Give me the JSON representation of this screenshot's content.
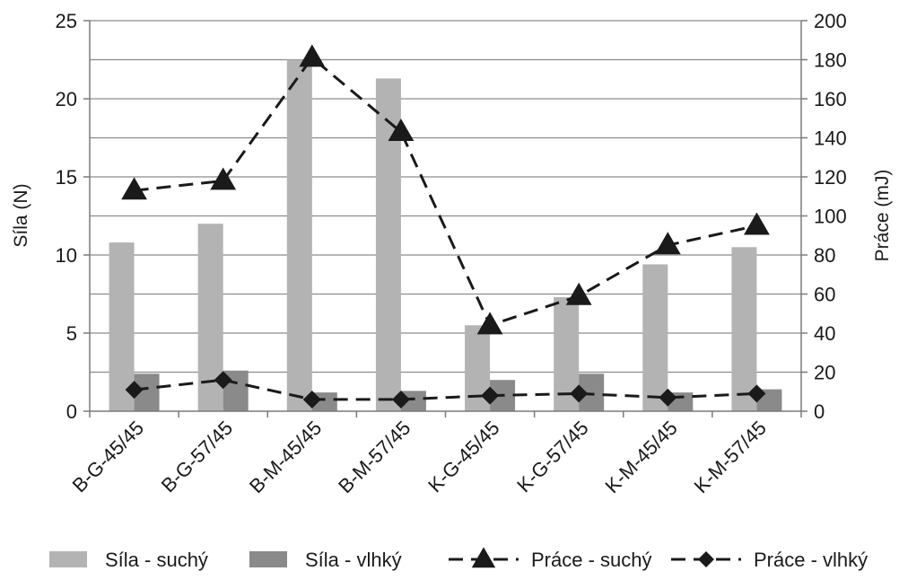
{
  "chart_data": {
    "type": "bar",
    "title": "",
    "categories": [
      "B-G-45/45",
      "B-G-57/45",
      "B-M-45/45",
      "B-M-57/45",
      "K-G-45/45",
      "K-G-57/45",
      "K-M-45/45",
      "K-M-57/45"
    ],
    "ylabel_left": "Síla (N)",
    "ylabel_right": "Práce (mJ)",
    "ylim_left": [
      0,
      25
    ],
    "ylim_right": [
      0,
      200
    ],
    "yticks_left": [
      "0",
      "5",
      "10",
      "15",
      "20",
      "25"
    ],
    "yticks_right": [
      "0",
      "20",
      "40",
      "60",
      "80",
      "100",
      "120",
      "140",
      "160",
      "180",
      "200"
    ],
    "grid": "horizontal",
    "legend_position": "bottom",
    "series": [
      {
        "name": "Síla - suchý",
        "kind": "bar",
        "axis": "left",
        "color": "#b3b3b3",
        "values": [
          10.8,
          12.0,
          22.5,
          21.3,
          5.5,
          7.3,
          9.4,
          10.5
        ]
      },
      {
        "name": "Síla - vlhký",
        "kind": "bar",
        "axis": "left",
        "color": "#8a8a8a",
        "values": [
          2.4,
          2.6,
          1.2,
          1.3,
          2.0,
          2.4,
          1.2,
          1.4
        ]
      },
      {
        "name": "Práce - suchý",
        "kind": "line",
        "axis": "right",
        "marker": "triangle",
        "color": "#1a1a1a",
        "values": [
          113,
          118,
          181,
          143,
          44,
          59,
          85,
          95
        ]
      },
      {
        "name": "Práce - vlhký",
        "kind": "line",
        "axis": "right",
        "marker": "diamond",
        "color": "#1a1a1a",
        "values": [
          11,
          16,
          6,
          6,
          8,
          9,
          7,
          9
        ]
      }
    ]
  }
}
